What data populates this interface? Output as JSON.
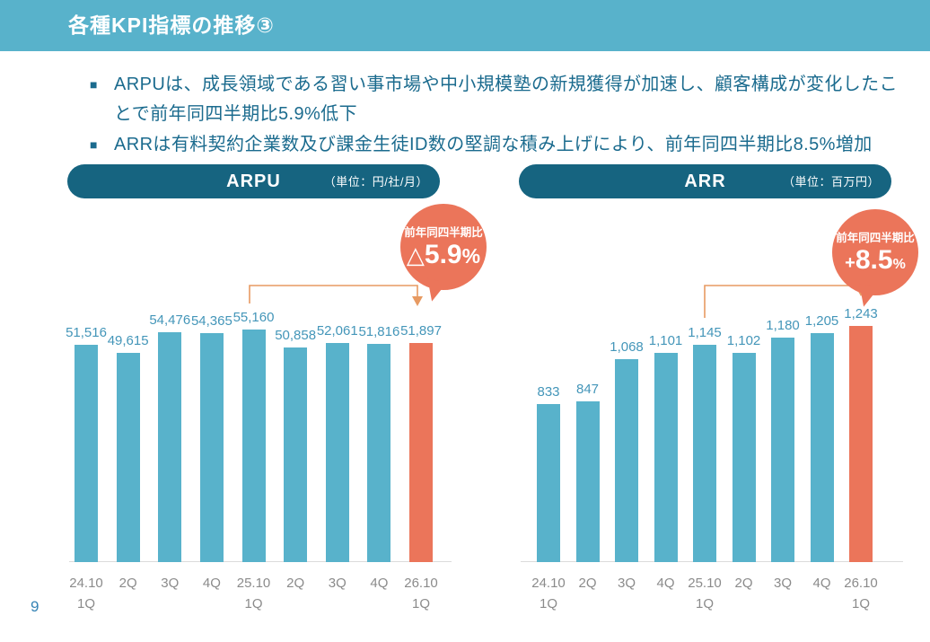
{
  "page_number": "9",
  "header": {
    "title": "各種KPI指標の推移③"
  },
  "bullets": [
    "ARPUは、成長領域である習い事市場や中小規模塾の新規獲得が加速し、顧客構成が変化したことで前年同四半期比5.9%低下",
    "ARRは有料契約企業数及び課金生徒ID数の堅調な積み上げにより、前年同四半期比8.5%増加"
  ],
  "colors": {
    "band": "#58B2CB",
    "bar": "#58B2CB",
    "barhl": "#EB755A",
    "pill": "#166480",
    "label": "#4496B9",
    "axis": "#8B8B8B",
    "bracket": "#E79A62",
    "bubble": "#EB755A",
    "text": "#1B6B8E",
    "baseline": "#DBDBDB",
    "pagenum": "#3583B5"
  },
  "chart_data": [
    {
      "type": "bar",
      "title": "ARPU",
      "unit_label": "（単位：円/社/月）",
      "categories": [
        [
          "24.10",
          "1Q"
        ],
        [
          "2Q"
        ],
        [
          "3Q"
        ],
        [
          "4Q"
        ],
        [
          "25.10",
          "1Q"
        ],
        [
          "2Q"
        ],
        [
          "3Q"
        ],
        [
          "4Q"
        ],
        [
          "26.10",
          "1Q"
        ]
      ],
      "values": [
        51516,
        49615,
        54476,
        54365,
        55160,
        50858,
        52061,
        51816,
        51897
      ],
      "highlight_index": 8,
      "ylim": [
        0,
        55160
      ],
      "grid": false,
      "legend": "none",
      "arrow_from": "25.10 1Q",
      "arrow_to": "26.10 1Q",
      "callout": {
        "caption": "前年同四半期比",
        "prefix": "△",
        "value": "5.9",
        "suffix": "%"
      }
    },
    {
      "type": "bar",
      "title": "ARR",
      "unit_label": "（単位：百万円）",
      "categories": [
        [
          "24.10",
          "1Q"
        ],
        [
          "2Q"
        ],
        [
          "3Q"
        ],
        [
          "4Q"
        ],
        [
          "25.10",
          "1Q"
        ],
        [
          "2Q"
        ],
        [
          "3Q"
        ],
        [
          "4Q"
        ],
        [
          "26.10",
          "1Q"
        ]
      ],
      "values": [
        833,
        847,
        1068,
        1101,
        1145,
        1102,
        1180,
        1205,
        1243
      ],
      "highlight_index": 8,
      "ylim": [
        0,
        1243
      ],
      "grid": false,
      "legend": "none",
      "arrow_from": "25.10 1Q",
      "arrow_to": "26.10 1Q",
      "callout": {
        "caption": "前年同四半期比",
        "prefix": "+",
        "value": "8.5",
        "suffix": "%"
      }
    }
  ]
}
